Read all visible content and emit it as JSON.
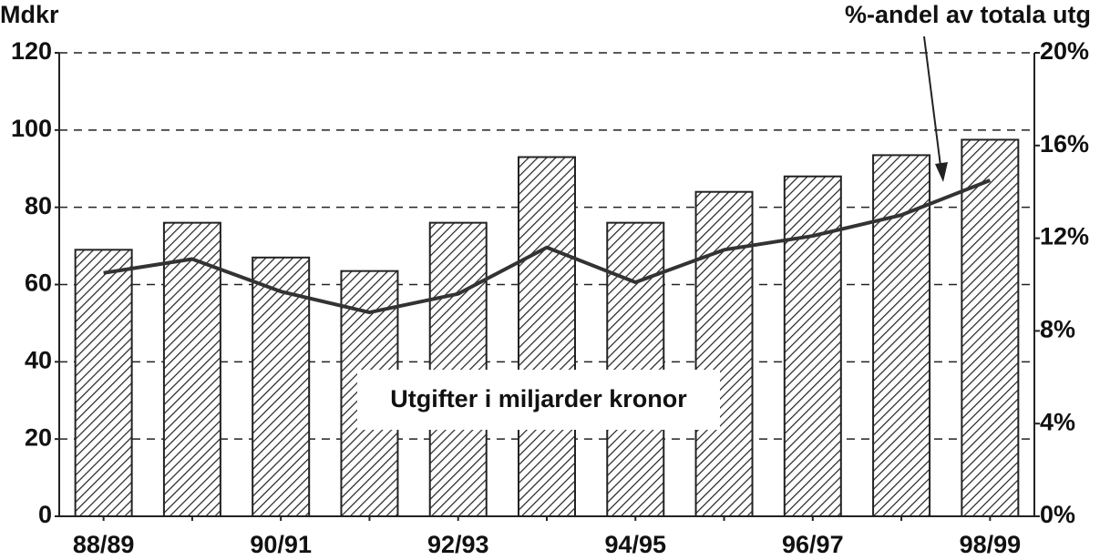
{
  "chart_data": {
    "type": "bar",
    "title": "Mdkr",
    "categories": [
      "88/89",
      null,
      "90/91",
      null,
      "92/93",
      null,
      "94/95",
      null,
      "96/97",
      null,
      "98/99"
    ],
    "series": [
      {
        "name": "Utgifter i miljarder kronor",
        "type": "bar",
        "color": "#222222",
        "values": [
          69,
          76,
          67,
          63.5,
          76,
          93,
          76,
          84,
          88,
          93.5,
          97.5
        ]
      },
      {
        "name": "%-andel av totala utg",
        "type": "line",
        "axis": "y2",
        "color": "#333333",
        "values": [
          10.5,
          11.1,
          9.7,
          8.8,
          9.6,
          11.6,
          10.1,
          11.5,
          12.1,
          13.0,
          14.5
        ]
      }
    ],
    "ylim": [
      0,
      120
    ],
    "yticks": [
      0,
      20,
      40,
      60,
      80,
      100,
      120
    ],
    "y2lim": [
      0,
      20
    ],
    "y2ticks": [
      {
        "value": 0,
        "label": "0%"
      },
      {
        "value": 4,
        "label": "4%"
      },
      {
        "value": 8,
        "label": "8%"
      },
      {
        "value": 12,
        "label": "12%"
      },
      {
        "value": 16,
        "label": "16%"
      },
      {
        "value": 20,
        "label": "20%"
      }
    ],
    "grid": true
  }
}
